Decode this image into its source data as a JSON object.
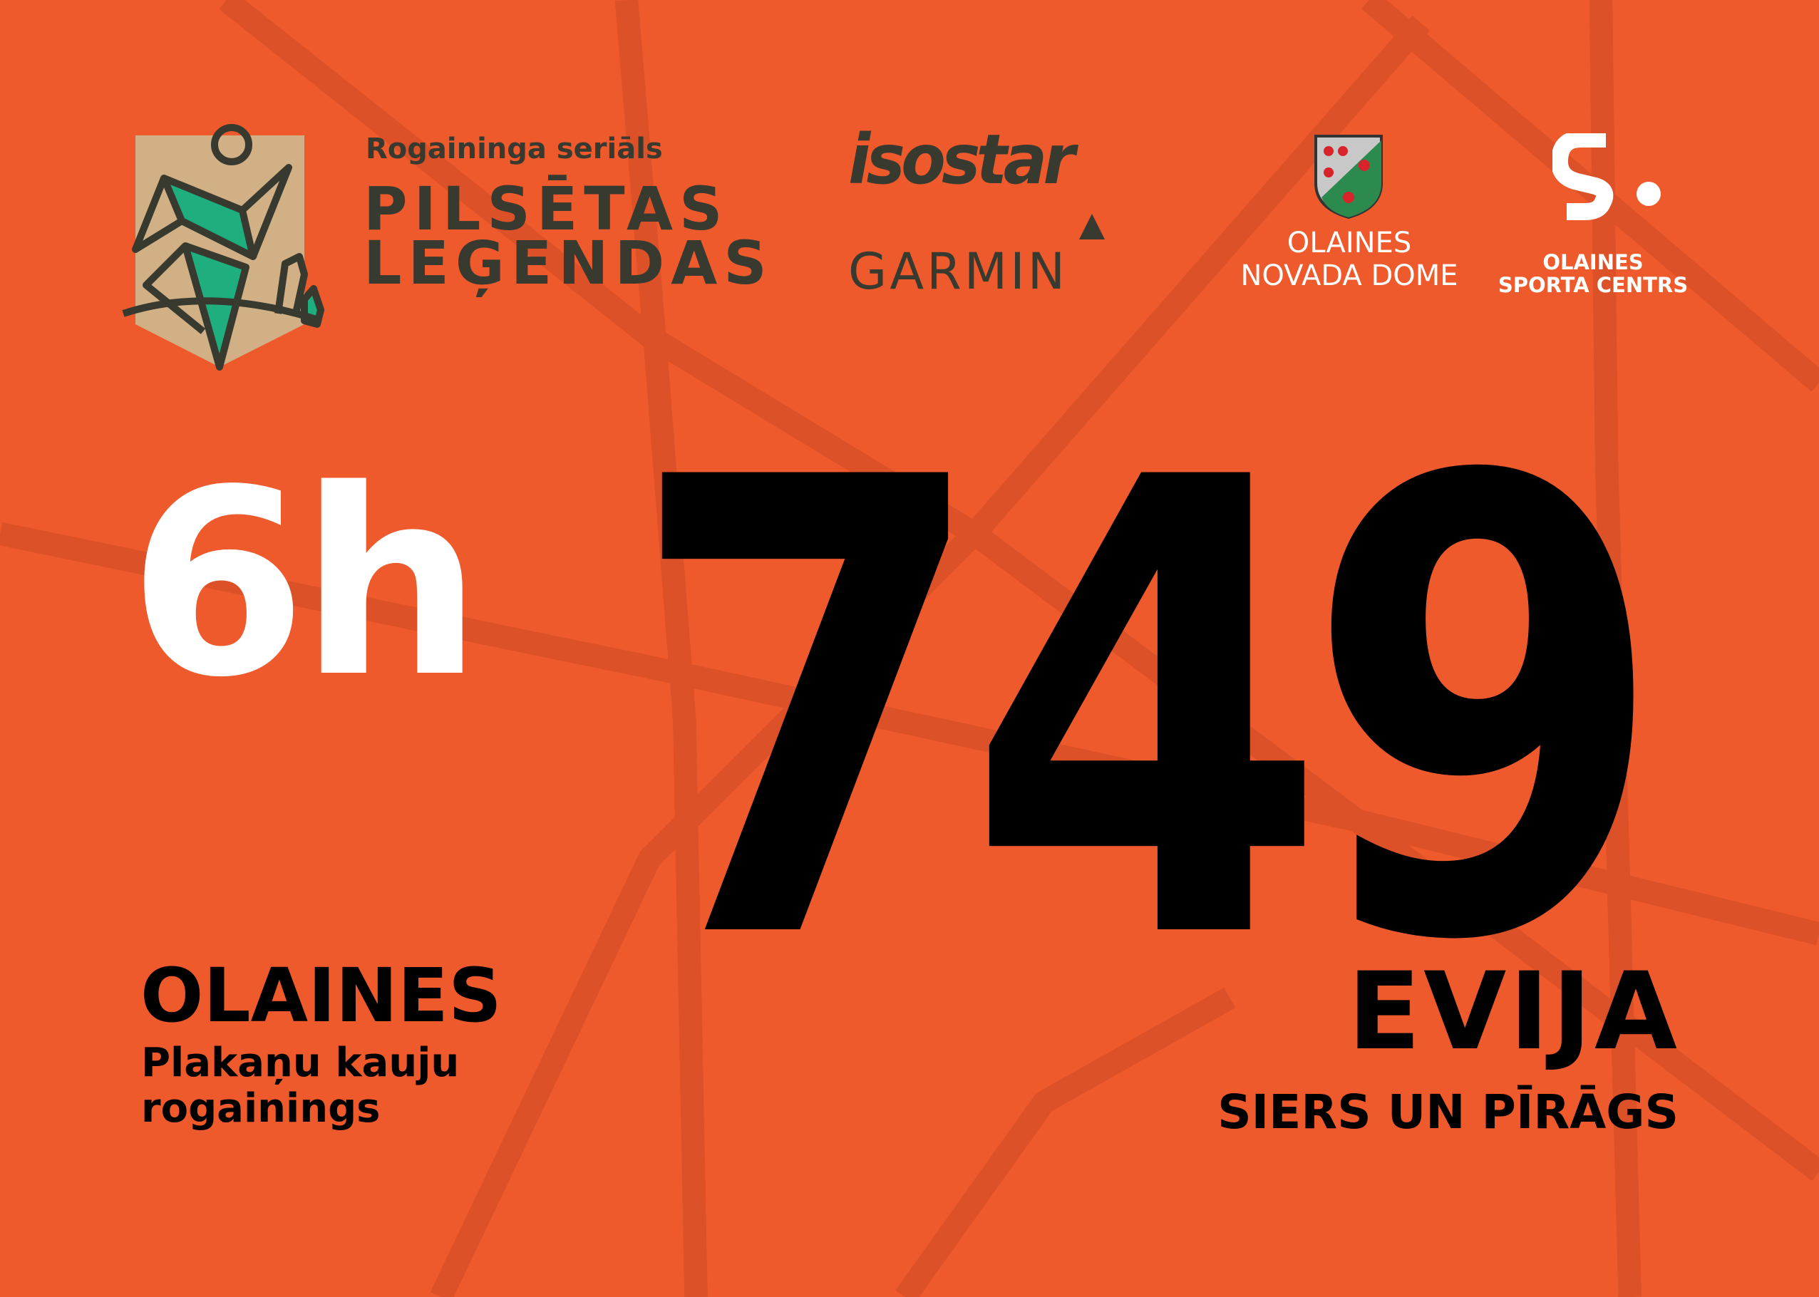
{
  "colors": {
    "background": "#EE5A2C",
    "background_lines": "#DC5128",
    "logo_dark": "#383a30",
    "logo_green": "#1fae7e",
    "logo_tan": "#d2b086",
    "number": "#000000",
    "category": "#ffffff"
  },
  "header": {
    "series_logo": {
      "subtitle": "Rogaininga seriāls",
      "title_line1": "PILSĒTAS",
      "title_line2": "LEĢENDAS"
    },
    "sponsors": {
      "isostar": "isostar",
      "garmin": "GARMIN",
      "council_line1": "OLAINES",
      "council_line2": "NOVADA DOME",
      "sports_centre_line1": "OLAINES",
      "sports_centre_line2": "SPORTA CENTRS"
    }
  },
  "bib": {
    "category": "6h",
    "number": "749",
    "event_city": "OLAINES",
    "event_name_line1": "Plakaņu kauju",
    "event_name_line2": "rogainings",
    "participant_name": "EVIJA",
    "team_name": "SIERS UN PĪRĀGS"
  }
}
